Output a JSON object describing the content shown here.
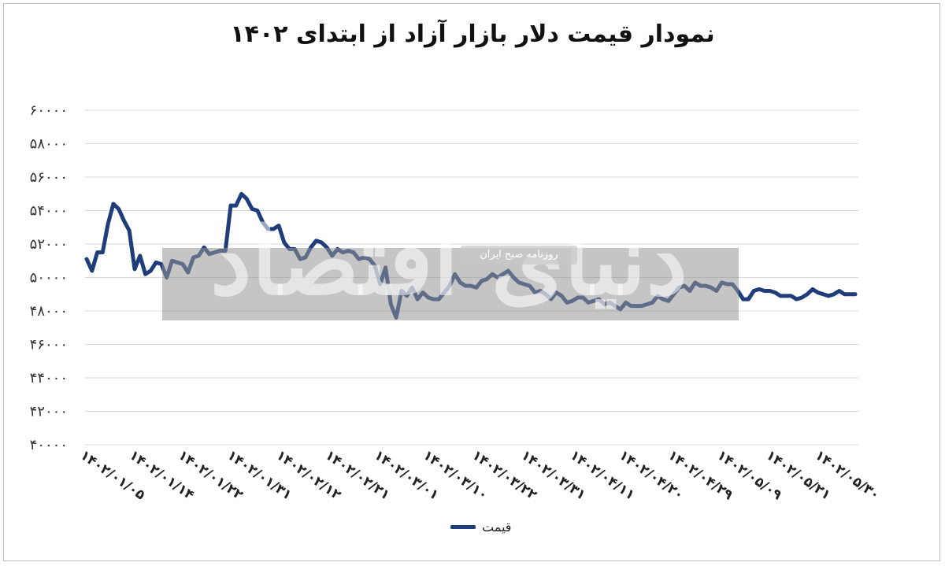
{
  "chart_data": {
    "type": "line",
    "title": "نمودار قیمت دلار بازار آزاد از ابتدای ۱۴۰۲",
    "ylim": [
      40000,
      60000
    ],
    "yticks": [
      "۶۰۰۰۰",
      "۵۸۰۰۰",
      "۵۶۰۰۰",
      "۵۴۰۰۰",
      "۵۲۰۰۰",
      "۵۰۰۰۰",
      "۴۸۰۰۰",
      "۴۶۰۰۰",
      "۴۴۰۰۰",
      "۴۲۰۰۰",
      "۴۰۰۰۰"
    ],
    "xtick_labels": [
      "۱۴۰۲/۰۱/۰۵",
      "۱۴۰۲/۰۱/۱۴",
      "۱۴۰۲/۰۱/۲۲",
      "۱۴۰۲/۰۱/۳۱",
      "۱۴۰۲/۰۲/۱۲",
      "۱۴۰۲/۰۲/۲۱",
      "۱۴۰۲/۰۳/۰۱",
      "۱۴۰۲/۰۳/۱۰",
      "۱۴۰۲/۰۳/۲۲",
      "۱۴۰۲/۰۳/۳۱",
      "۱۴۰۲/۰۴/۱۱",
      "۱۴۰۲/۰۴/۲۰",
      "۱۴۰۲/۰۴/۲۹",
      "۱۴۰۲/۰۵/۰۹",
      "۱۴۰۲/۰۵/۲۱",
      "۱۴۰۲/۰۵/۳۰"
    ],
    "grid": true,
    "legend": "bottom",
    "series": [
      {
        "name": "قیمت",
        "color": "#1f3d7a",
        "values": [
          51100,
          50400,
          51500,
          51500,
          53200,
          54400,
          54100,
          53400,
          52800,
          50500,
          51300,
          50200,
          50400,
          50900,
          50800,
          50000,
          51000,
          50900,
          50800,
          50300,
          51200,
          51300,
          51800,
          51400,
          51500,
          51600,
          51600,
          54300,
          54300,
          55000,
          54700,
          54100,
          54000,
          53300,
          52900,
          52900,
          53100,
          52100,
          51700,
          51700,
          51100,
          51200,
          51800,
          52200,
          52100,
          51800,
          51300,
          51700,
          51500,
          51600,
          51500,
          51100,
          51200,
          51100,
          50700,
          49600,
          50600,
          48400,
          47600,
          49200,
          48900,
          49400,
          48700,
          49100,
          48800,
          48700,
          48700,
          49100,
          49500,
          50200,
          49700,
          49500,
          49500,
          49400,
          49800,
          49900,
          50200,
          50000,
          50200,
          50400,
          50000,
          49700,
          49600,
          49500,
          49100,
          49200,
          49000,
          48700,
          49100,
          48900,
          48500,
          48600,
          48800,
          48800,
          48500,
          48600,
          48700,
          48400,
          48500,
          48300,
          48100,
          48500,
          48300,
          48300,
          48300,
          48400,
          48500,
          48900,
          48700,
          48600,
          49000,
          49400,
          49500,
          49200,
          49700,
          49500,
          49500,
          49400,
          49200,
          49700,
          49600,
          49600,
          49200,
          48700,
          48700,
          49200,
          49300,
          49200,
          49200,
          49100,
          48900,
          48900,
          48900,
          48700,
          48800,
          49000,
          49300,
          49100,
          49000,
          48900,
          49000,
          49200,
          49000,
          49000,
          49000
        ]
      }
    ]
  },
  "watermark": {
    "badge": "روزنامه صبح ایران",
    "text": "دنیای اقتصاد"
  }
}
